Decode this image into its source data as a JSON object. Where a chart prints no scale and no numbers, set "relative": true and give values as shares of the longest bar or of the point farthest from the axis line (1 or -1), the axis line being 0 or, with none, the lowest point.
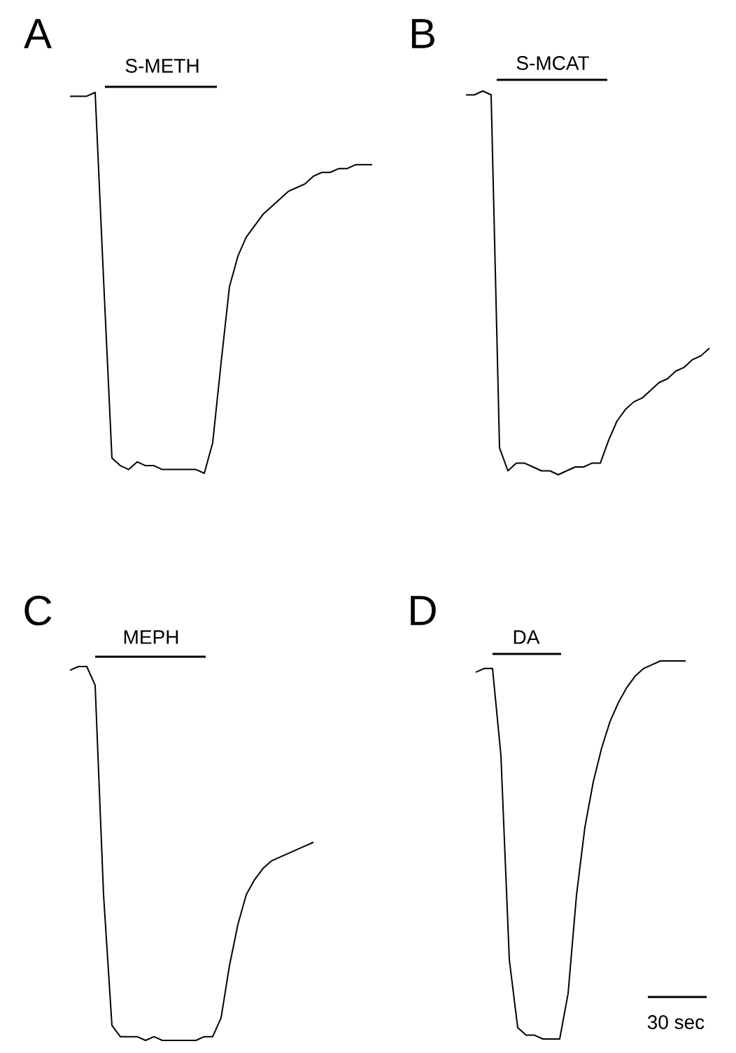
{
  "chart_data": [
    {
      "type": "line",
      "title": "A",
      "annotations": [
        "S-METH"
      ],
      "relative": true,
      "color": "#000000",
      "categories": [
        null,
        null,
        null,
        null,
        null,
        null,
        null,
        null,
        null,
        null,
        null,
        null,
        null,
        null,
        null,
        null,
        null,
        null,
        null,
        null,
        null,
        null,
        null,
        null,
        null,
        null,
        null,
        null,
        null,
        null,
        null,
        null,
        null,
        null,
        null,
        null,
        null
      ],
      "values": [
        0.99,
        0.99,
        0.99,
        1.0,
        0.51,
        0.04,
        0.02,
        0.01,
        0.03,
        0.02,
        0.02,
        0.01,
        0.01,
        0.01,
        0.01,
        0.01,
        0.0,
        0.08,
        0.29,
        0.49,
        0.57,
        0.62,
        0.65,
        0.68,
        0.7,
        0.72,
        0.74,
        0.75,
        0.76,
        0.78,
        0.79,
        0.79,
        0.8,
        0.8,
        0.81,
        0.81,
        0.81
      ]
    },
    {
      "type": "line",
      "title": "B",
      "annotations": [
        "S-MCAT"
      ],
      "relative": true,
      "color": "#000000",
      "categories": [
        null,
        null,
        null,
        null,
        null,
        null,
        null,
        null,
        null,
        null,
        null,
        null,
        null,
        null,
        null,
        null,
        null,
        null,
        null,
        null,
        null,
        null,
        null,
        null,
        null,
        null,
        null,
        null,
        null,
        null
      ],
      "values": [
        0.99,
        0.99,
        1.0,
        0.99,
        0.07,
        0.01,
        0.03,
        0.03,
        0.02,
        0.01,
        0.01,
        0.0,
        0.01,
        0.02,
        0.02,
        0.03,
        0.03,
        0.09,
        0.14,
        0.17,
        0.19,
        0.2,
        0.22,
        0.24,
        0.25,
        0.27,
        0.28,
        0.3,
        0.31,
        0.33
      ]
    },
    {
      "type": "line",
      "title": "C",
      "annotations": [
        "MEPH"
      ],
      "relative": true,
      "color": "#000000",
      "categories": [
        null,
        null,
        null,
        null,
        null,
        null,
        null,
        null,
        null,
        null,
        null,
        null,
        null,
        null,
        null,
        null,
        null,
        null,
        null,
        null,
        null,
        null,
        null,
        null,
        null,
        null,
        null,
        null,
        null,
        null
      ],
      "values": [
        0.99,
        1.0,
        1.0,
        0.95,
        0.39,
        0.04,
        0.01,
        0.01,
        0.01,
        0.0,
        0.01,
        0.0,
        0.0,
        0.0,
        0.0,
        0.0,
        0.01,
        0.01,
        0.06,
        0.2,
        0.31,
        0.39,
        0.43,
        0.46,
        0.48,
        0.49,
        0.5,
        0.51,
        0.52,
        0.53
      ]
    },
    {
      "type": "line",
      "title": "D",
      "annotations": [
        "DA",
        "30 sec"
      ],
      "relative": true,
      "color": "#000000",
      "categories": [
        null,
        null,
        null,
        null,
        null,
        null,
        null,
        null,
        null,
        null,
        null,
        null,
        null,
        null,
        null,
        null,
        null,
        null,
        null,
        null,
        null,
        null,
        null,
        null,
        null,
        null
      ],
      "values": [
        0.97,
        0.98,
        0.98,
        0.75,
        0.21,
        0.03,
        0.01,
        0.01,
        0.0,
        0.0,
        0.0,
        0.12,
        0.38,
        0.56,
        0.68,
        0.77,
        0.84,
        0.89,
        0.93,
        0.96,
        0.98,
        0.99,
        1.0,
        1.0,
        1.0,
        1.0
      ]
    }
  ]
}
